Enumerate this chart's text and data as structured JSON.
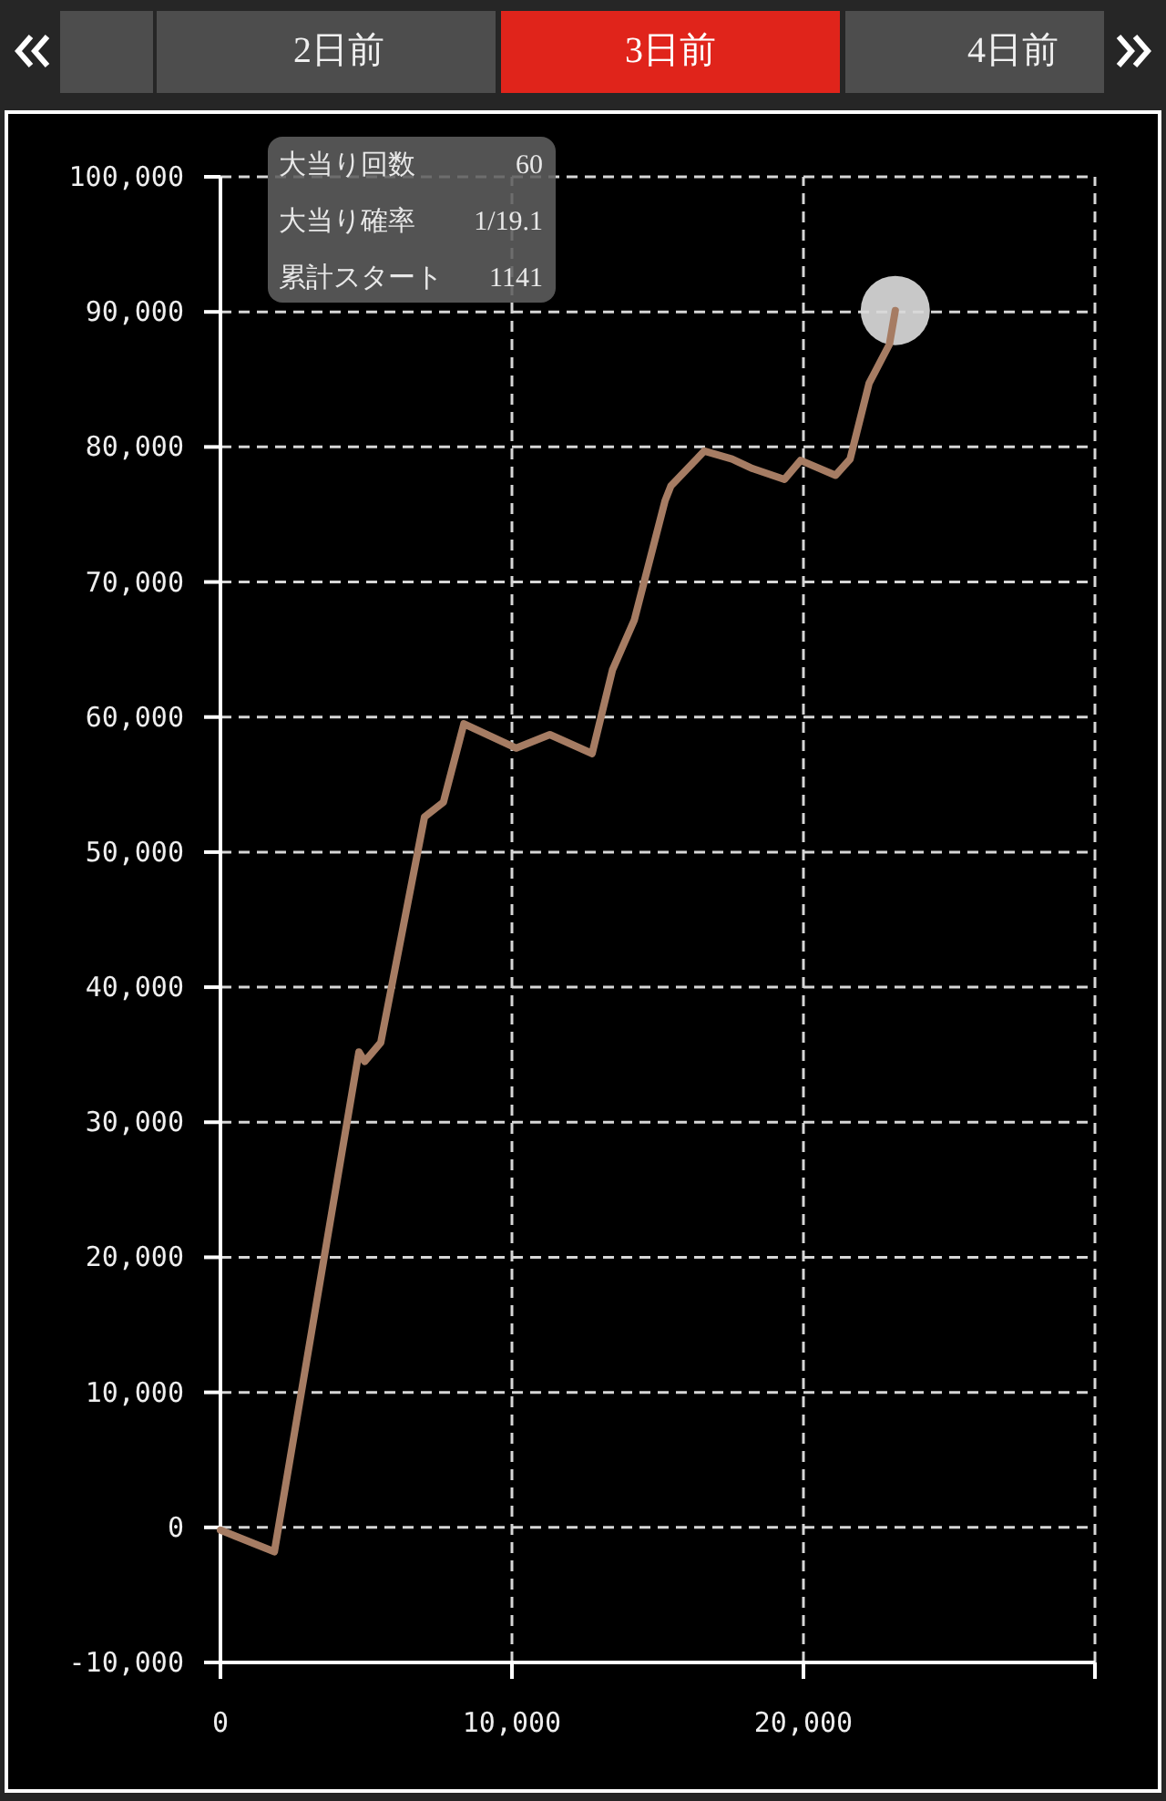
{
  "chart_data": {
    "type": "line",
    "title": "3日前",
    "annotations": [
      "2日前",
      "4日前",
      "大当り回数",
      "60",
      "大当り確率",
      "1/19.1",
      "累計スタート",
      "1141"
    ],
    "xlim": [
      0,
      30000
    ],
    "xticks": [
      0,
      {
        "value": 10000,
        "label": "10,000"
      },
      {
        "value": 20000,
        "label": "20,000"
      },
      {
        "value": 30000,
        "label": null
      }
    ],
    "ylim": [
      -10000,
      100000
    ],
    "yticks": [
      {
        "value": -10000,
        "label": "-10,000"
      },
      0,
      {
        "value": 10000,
        "label": "10,000"
      },
      {
        "value": 20000,
        "label": "20,000"
      },
      {
        "value": 30000,
        "label": "30,000"
      },
      {
        "value": 40000,
        "label": "40,000"
      },
      {
        "value": 50000,
        "label": "50,000"
      },
      {
        "value": 60000,
        "label": "60,000"
      },
      {
        "value": 70000,
        "label": "70,000"
      },
      {
        "value": 80000,
        "label": "80,000"
      },
      {
        "value": 90000,
        "label": "90,000"
      },
      {
        "value": 100000,
        "label": "100,000"
      }
    ],
    "grid": true,
    "series": [
      {
        "type": "line",
        "color": "#a67c63",
        "x": [
          0,
          1850,
          4750,
          4950,
          5500,
          7000,
          7650,
          8350,
          10150,
          11300,
          12750,
          13450,
          14200,
          15250,
          15450,
          16600,
          17550,
          18250,
          19350,
          19900,
          21100,
          21600,
          22250,
          22950,
          23150
        ],
        "values": [
          -200,
          -1800,
          35200,
          34500,
          35900,
          52600,
          53700,
          59500,
          57700,
          58700,
          57300,
          63500,
          67200,
          76000,
          77100,
          79700,
          79100,
          78400,
          77600,
          79000,
          77900,
          79100,
          84700,
          87600,
          90100
        ]
      },
      {
        "type": "scatter",
        "marker": "circle",
        "color": "#d9d9d9",
        "x": [
          23150
        ],
        "values": [
          90100
        ]
      }
    ]
  }
}
